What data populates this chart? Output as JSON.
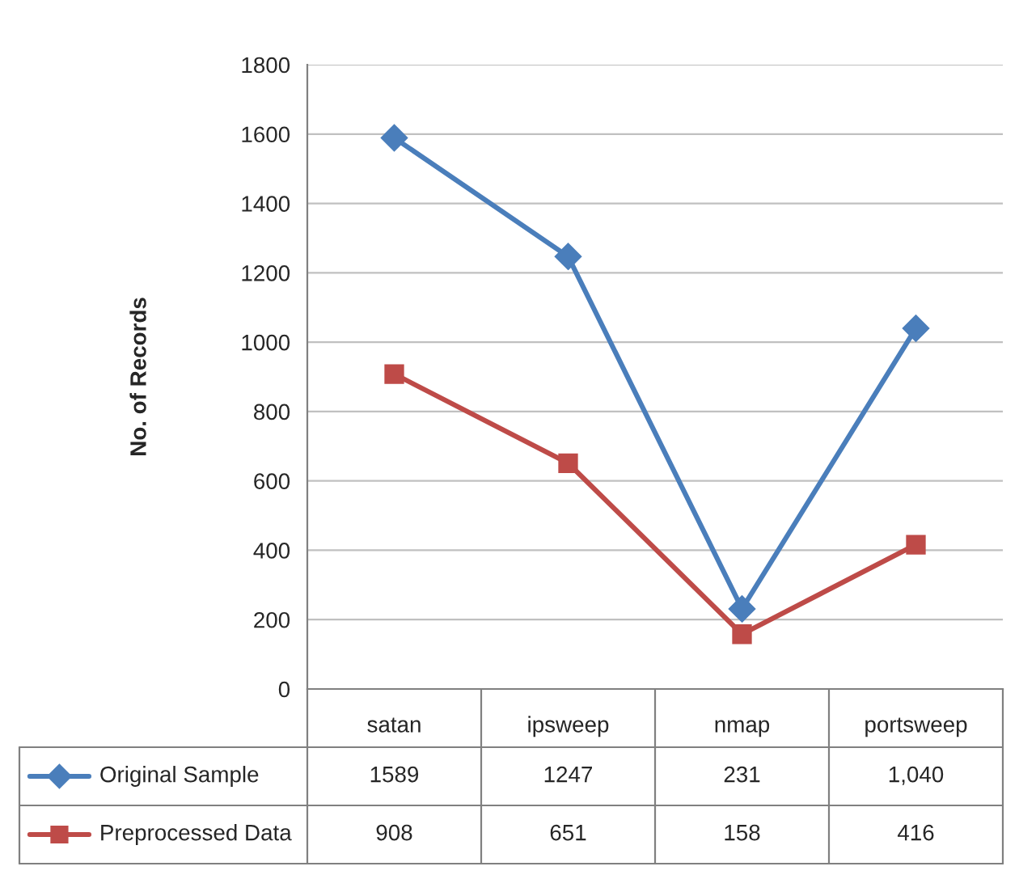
{
  "chart_data": {
    "type": "line",
    "ylabel": "No. of Records",
    "categories": [
      "satan",
      "ipsweep",
      "nmap",
      "portsweep"
    ],
    "series": [
      {
        "name": "Original Sample",
        "color": "#4a7ebb",
        "marker": "diamond",
        "values": [
          1589,
          1247,
          231,
          1040
        ],
        "value_labels": [
          "1589",
          "1247",
          "231",
          "1,040"
        ]
      },
      {
        "name": "Preprocessed Data",
        "color": "#be4b48",
        "marker": "square",
        "values": [
          908,
          651,
          158,
          416
        ],
        "value_labels": [
          "908",
          "651",
          "158",
          "416"
        ]
      }
    ],
    "ylim": [
      0,
      1800
    ],
    "yticks": [
      0,
      200,
      400,
      600,
      800,
      1000,
      1200,
      1400,
      1600,
      1800
    ],
    "grid": "y",
    "legend": "bottom"
  }
}
